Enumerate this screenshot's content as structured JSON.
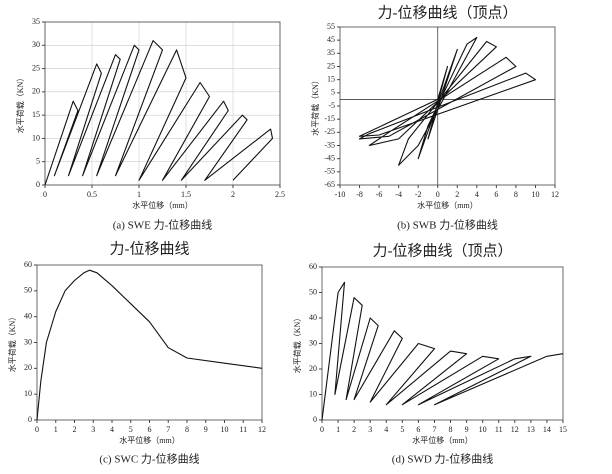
{
  "chart_data": [
    {
      "type": "line",
      "ylabel": "水平荷载（KN）",
      "xlabel": "水平位移（mm）",
      "caption": "(a) SWE 力-位移曲线",
      "x": [
        0,
        0.3,
        0.35,
        0.1,
        0.55,
        0.6,
        0.25,
        0.75,
        0.8,
        0.4,
        0.95,
        1.0,
        0.55,
        1.15,
        1.25,
        0.75,
        1.4,
        1.5,
        1.0,
        1.65,
        1.75,
        1.25,
        1.9,
        1.95,
        1.45,
        2.1,
        2.15,
        1.7,
        2.4,
        2.42,
        2.0
      ],
      "values": [
        0,
        18,
        16,
        2,
        26,
        24,
        2,
        28,
        27,
        2,
        30,
        29,
        2,
        31,
        29,
        2,
        29,
        23,
        1,
        22,
        19,
        1,
        18,
        16,
        1,
        15,
        14,
        1,
        12,
        10,
        1
      ],
      "color": "#111111",
      "xlim": [
        0,
        2.5
      ],
      "xticks": [
        0,
        0.5,
        1,
        1.5,
        2,
        2.5
      ],
      "ylim": [
        0,
        35
      ],
      "yticks": [
        0,
        5,
        10,
        15,
        20,
        25,
        30,
        35
      ],
      "grid": true,
      "zero_axes": false
    },
    {
      "type": "line",
      "title": "力-位移曲线（顶点）",
      "ylabel": "水平荷载（KN）",
      "xlabel": "水平位移（mm）",
      "caption": "(b) SWB 力-位移曲线",
      "x": [
        0,
        1,
        -1,
        2,
        -2,
        -1,
        3,
        4,
        -2,
        -4,
        -3,
        5,
        6,
        -4,
        -7,
        -5,
        7,
        8,
        -5,
        -8,
        -7,
        9,
        10,
        -6,
        -8,
        0
      ],
      "values": [
        0,
        25,
        -30,
        38,
        -45,
        -20,
        42,
        47,
        -35,
        -50,
        -30,
        44,
        40,
        -30,
        -35,
        -25,
        32,
        25,
        -28,
        -30,
        -26,
        20,
        15,
        -27,
        -28,
        0
      ],
      "color": "#111111",
      "xlim": [
        -10,
        12
      ],
      "xticks": [
        -10,
        -8,
        -6,
        -4,
        -2,
        0,
        2,
        4,
        6,
        8,
        10,
        12
      ],
      "ylim": [
        -65,
        55
      ],
      "yticks": [
        -65,
        -55,
        -45,
        -35,
        -25,
        -15,
        -5,
        5,
        15,
        25,
        35,
        45,
        55
      ],
      "grid": false,
      "zero_axes": true
    },
    {
      "type": "line",
      "title": "力-位移曲线",
      "ylabel": "水平荷载（KN）",
      "xlabel": "水平位移（mm）",
      "caption": "(c) SWC 力-位移曲线",
      "x": [
        0,
        0.2,
        0.5,
        1,
        1.5,
        2,
        2.5,
        2.8,
        3.2,
        4,
        5,
        6,
        7,
        8,
        10,
        12
      ],
      "values": [
        0,
        15,
        30,
        42,
        50,
        54,
        57,
        58,
        57,
        52,
        45,
        38,
        28,
        24,
        22,
        20
      ],
      "color": "#111111",
      "xlim": [
        0,
        12
      ],
      "xticks": [
        0,
        1,
        2,
        3,
        4,
        5,
        6,
        7,
        8,
        9,
        10,
        11,
        12
      ],
      "ylim": [
        0,
        60
      ],
      "yticks": [
        0,
        10,
        20,
        30,
        40,
        50,
        60
      ],
      "grid": false,
      "zero_axes": false
    },
    {
      "type": "line",
      "title": "力-位移曲线（顶点）",
      "ylabel": "水平荷载（KN）",
      "xlabel": "水平位移（mm）",
      "caption": "(d) SWD 力-位移曲线",
      "x": [
        0,
        1,
        1.4,
        0.8,
        2,
        2.5,
        1.5,
        3,
        3.5,
        2,
        4.5,
        5,
        3,
        6,
        7,
        4,
        8,
        9,
        5,
        10,
        11,
        6,
        12,
        13,
        7,
        14,
        15
      ],
      "values": [
        0,
        50,
        54,
        10,
        48,
        45,
        8,
        40,
        37,
        8,
        35,
        32,
        7,
        30,
        28,
        6,
        27,
        26,
        6,
        25,
        24,
        6,
        24,
        25,
        6,
        25,
        26
      ],
      "color": "#111111",
      "xlim": [
        0,
        15
      ],
      "xticks": [
        0,
        1,
        2,
        3,
        4,
        5,
        6,
        7,
        8,
        9,
        10,
        11,
        12,
        13,
        14,
        15
      ],
      "ylim": [
        0,
        60
      ],
      "yticks": [
        0,
        10,
        20,
        30,
        40,
        50,
        60
      ],
      "grid": false,
      "zero_axes": false
    }
  ]
}
